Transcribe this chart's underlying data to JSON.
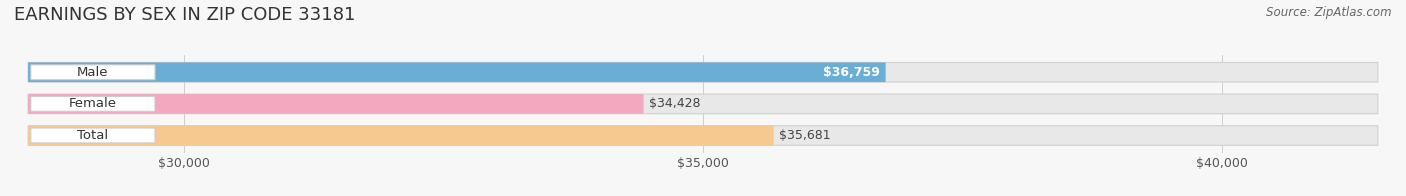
{
  "title": "EARNINGS BY SEX IN ZIP CODE 33181",
  "source_text": "Source: ZipAtlas.com",
  "categories": [
    "Male",
    "Female",
    "Total"
  ],
  "values": [
    36759,
    34428,
    35681
  ],
  "bar_colors": [
    "#6aaed6",
    "#f4a8c0",
    "#f5c990"
  ],
  "value_labels": [
    "$36,759",
    "$34,428",
    "$35,681"
  ],
  "value_label_inside": [
    true,
    false,
    false
  ],
  "bar_bg_color": "#e8e8e8",
  "xlim": [
    28500,
    41500
  ],
  "xmin": 28500,
  "xticks": [
    30000,
    35000,
    40000
  ],
  "xtick_labels": [
    "$30,000",
    "$35,000",
    "$40,000"
  ],
  "background_color": "#f7f7f7",
  "bar_height": 0.62,
  "title_fontsize": 13,
  "label_fontsize": 9.5,
  "value_fontsize": 9,
  "tick_fontsize": 9,
  "source_fontsize": 8.5
}
